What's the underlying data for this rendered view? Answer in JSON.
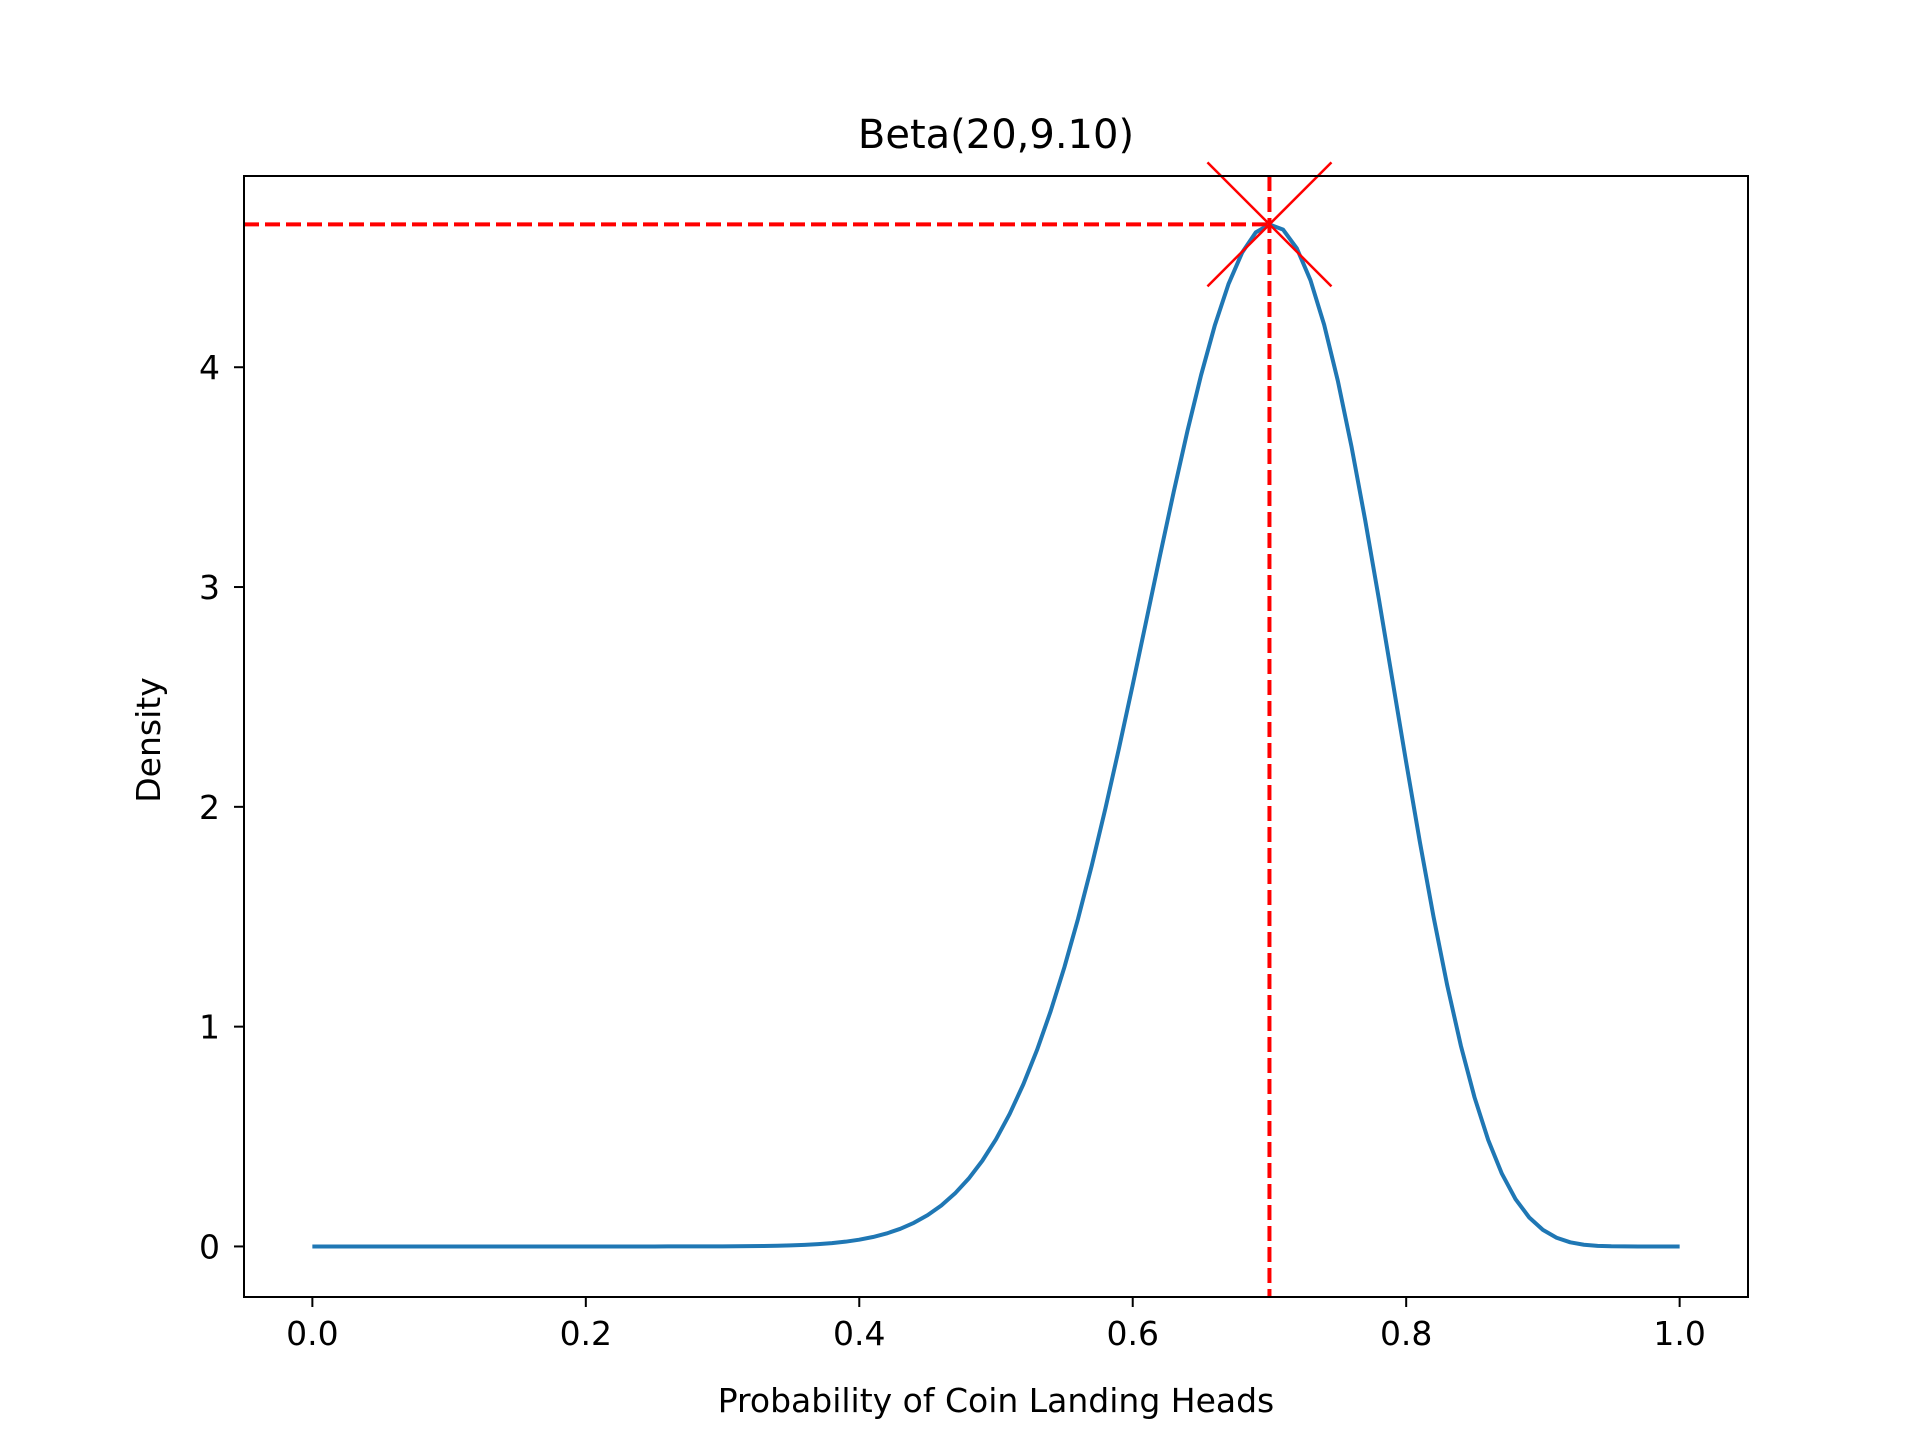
{
  "chart_data": {
    "type": "line",
    "title": "Beta(20,9.10)",
    "xlabel": "Probability of Coin Landing Heads",
    "ylabel": "Density",
    "xlim": [
      -0.05,
      1.05
    ],
    "ylim": [
      -0.23,
      4.87
    ],
    "xticks": [
      0.0,
      0.2,
      0.4,
      0.6,
      0.8,
      1.0
    ],
    "xtick_labels": [
      "0.0",
      "0.2",
      "0.4",
      "0.6",
      "0.8",
      "1.0"
    ],
    "yticks": [
      0,
      1,
      2,
      3,
      4
    ],
    "ytick_labels": [
      "0",
      "1",
      "2",
      "3",
      "4"
    ],
    "grid": false,
    "series": [
      {
        "distribution": "beta",
        "alpha": 20,
        "beta": 9.1,
        "x_range": [
          0,
          1
        ],
        "color": "#1f77b4"
      }
    ],
    "annotations": {
      "peak_marker": {
        "x": 0.7,
        "y": 4.65,
        "color": "#ff0000",
        "shape": "x"
      },
      "reference_lines": {
        "x": 0.7,
        "y": 4.65,
        "color": "#ff0000",
        "style": "dashed"
      }
    }
  }
}
